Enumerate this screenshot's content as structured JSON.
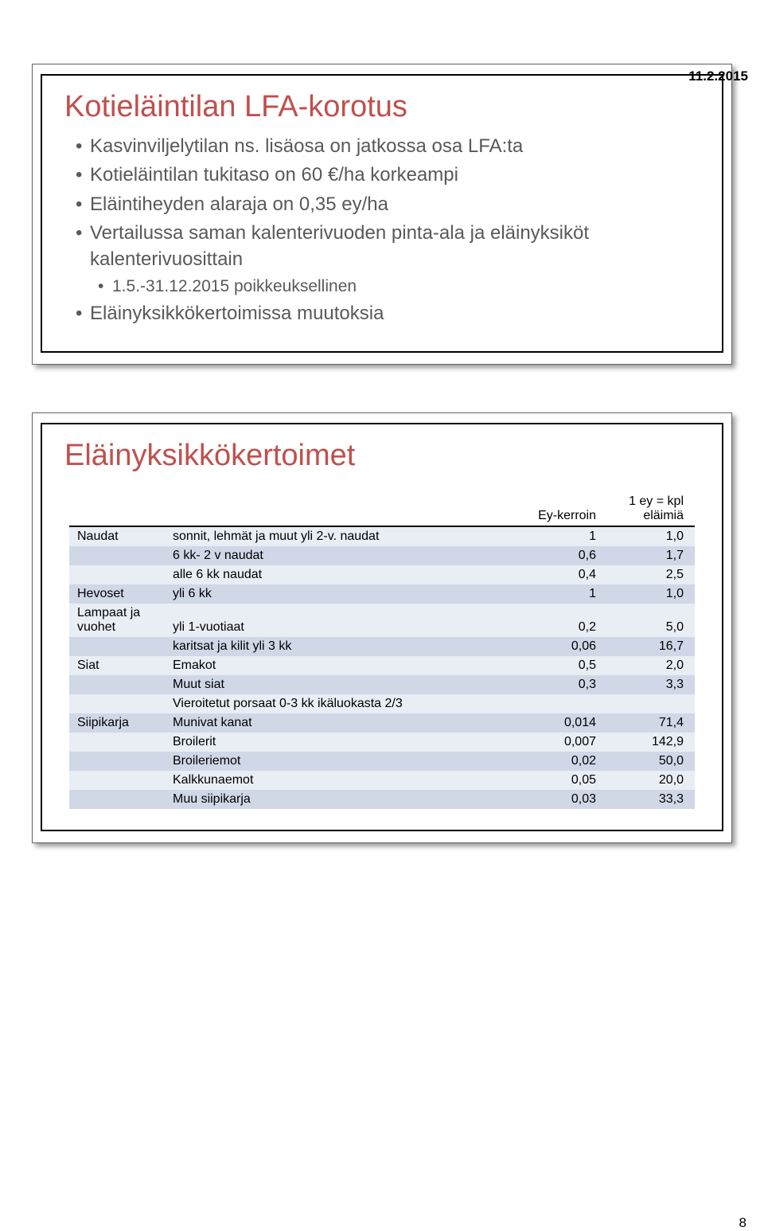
{
  "page_date": "11.2.2015",
  "page_number": "8",
  "colors": {
    "title": "#c0504d",
    "body_text": "#595959",
    "row_odd": "#e9edf4",
    "row_even": "#d0d8e8",
    "header_rule": "#000000"
  },
  "slide1": {
    "title": "Kotieläintilan LFA-korotus",
    "bullets": [
      "Kasvinviljelytilan ns. lisäosa on jatkossa osa LFA:ta",
      "Kotieläintilan tukitaso on 60 €/ha korkeampi",
      "Eläintiheyden alaraja on 0,35 ey/ha",
      "Vertailussa saman kalenterivuoden pinta-ala ja eläinyksiköt kalenterivuosittain"
    ],
    "sub_bullet": "1.5.-31.12.2015 poikkeuksellinen",
    "last_bullet": "Eläinyksikkökertoimissa muutoksia"
  },
  "slide2": {
    "title": "Eläinyksikkökertoimet",
    "header": {
      "c1": "Ey-kerroin",
      "c2": "1 ey = kpl eläimiä"
    },
    "rows": [
      {
        "lbl": "Naudat",
        "desc": "sonnit, lehmät ja muut yli 2-v. naudat",
        "v1": "1",
        "v2": "1,0"
      },
      {
        "lbl": "",
        "desc": "6 kk- 2 v naudat",
        "v1": "0,6",
        "v2": "1,7"
      },
      {
        "lbl": "",
        "desc": "alle 6 kk naudat",
        "v1": "0,4",
        "v2": "2,5"
      },
      {
        "lbl": "Hevoset",
        "desc": "yli 6 kk",
        "v1": "1",
        "v2": "1,0"
      },
      {
        "lbl": "Lampaat ja vuohet",
        "desc": "yli 1-vuotiaat",
        "v1": "0,2",
        "v2": "5,0"
      },
      {
        "lbl": "",
        "desc": "karitsat ja kilit yli 3 kk",
        "v1": "0,06",
        "v2": "16,7"
      },
      {
        "lbl": "Siat",
        "desc": "Emakot",
        "v1": "0,5",
        "v2": "2,0"
      },
      {
        "lbl": "",
        "desc": "Muut siat",
        "v1": "0,3",
        "v2": "3,3"
      },
      {
        "lbl": "",
        "desc": "Vieroitetut porsaat 0-3 kk ikäluokasta 2/3",
        "v1": "",
        "v2": ""
      },
      {
        "lbl": "Siipikarja",
        "desc": "Munivat kanat",
        "v1": "0,014",
        "v2": "71,4"
      },
      {
        "lbl": "",
        "desc": "Broilerit",
        "v1": "0,007",
        "v2": "142,9"
      },
      {
        "lbl": "",
        "desc": "Broileriemot",
        "v1": "0,02",
        "v2": "50,0"
      },
      {
        "lbl": "",
        "desc": "Kalkkunaemot",
        "v1": "0,05",
        "v2": "20,0"
      },
      {
        "lbl": "",
        "desc": "Muu siipikarja",
        "v1": "0,03",
        "v2": "33,3"
      }
    ]
  }
}
